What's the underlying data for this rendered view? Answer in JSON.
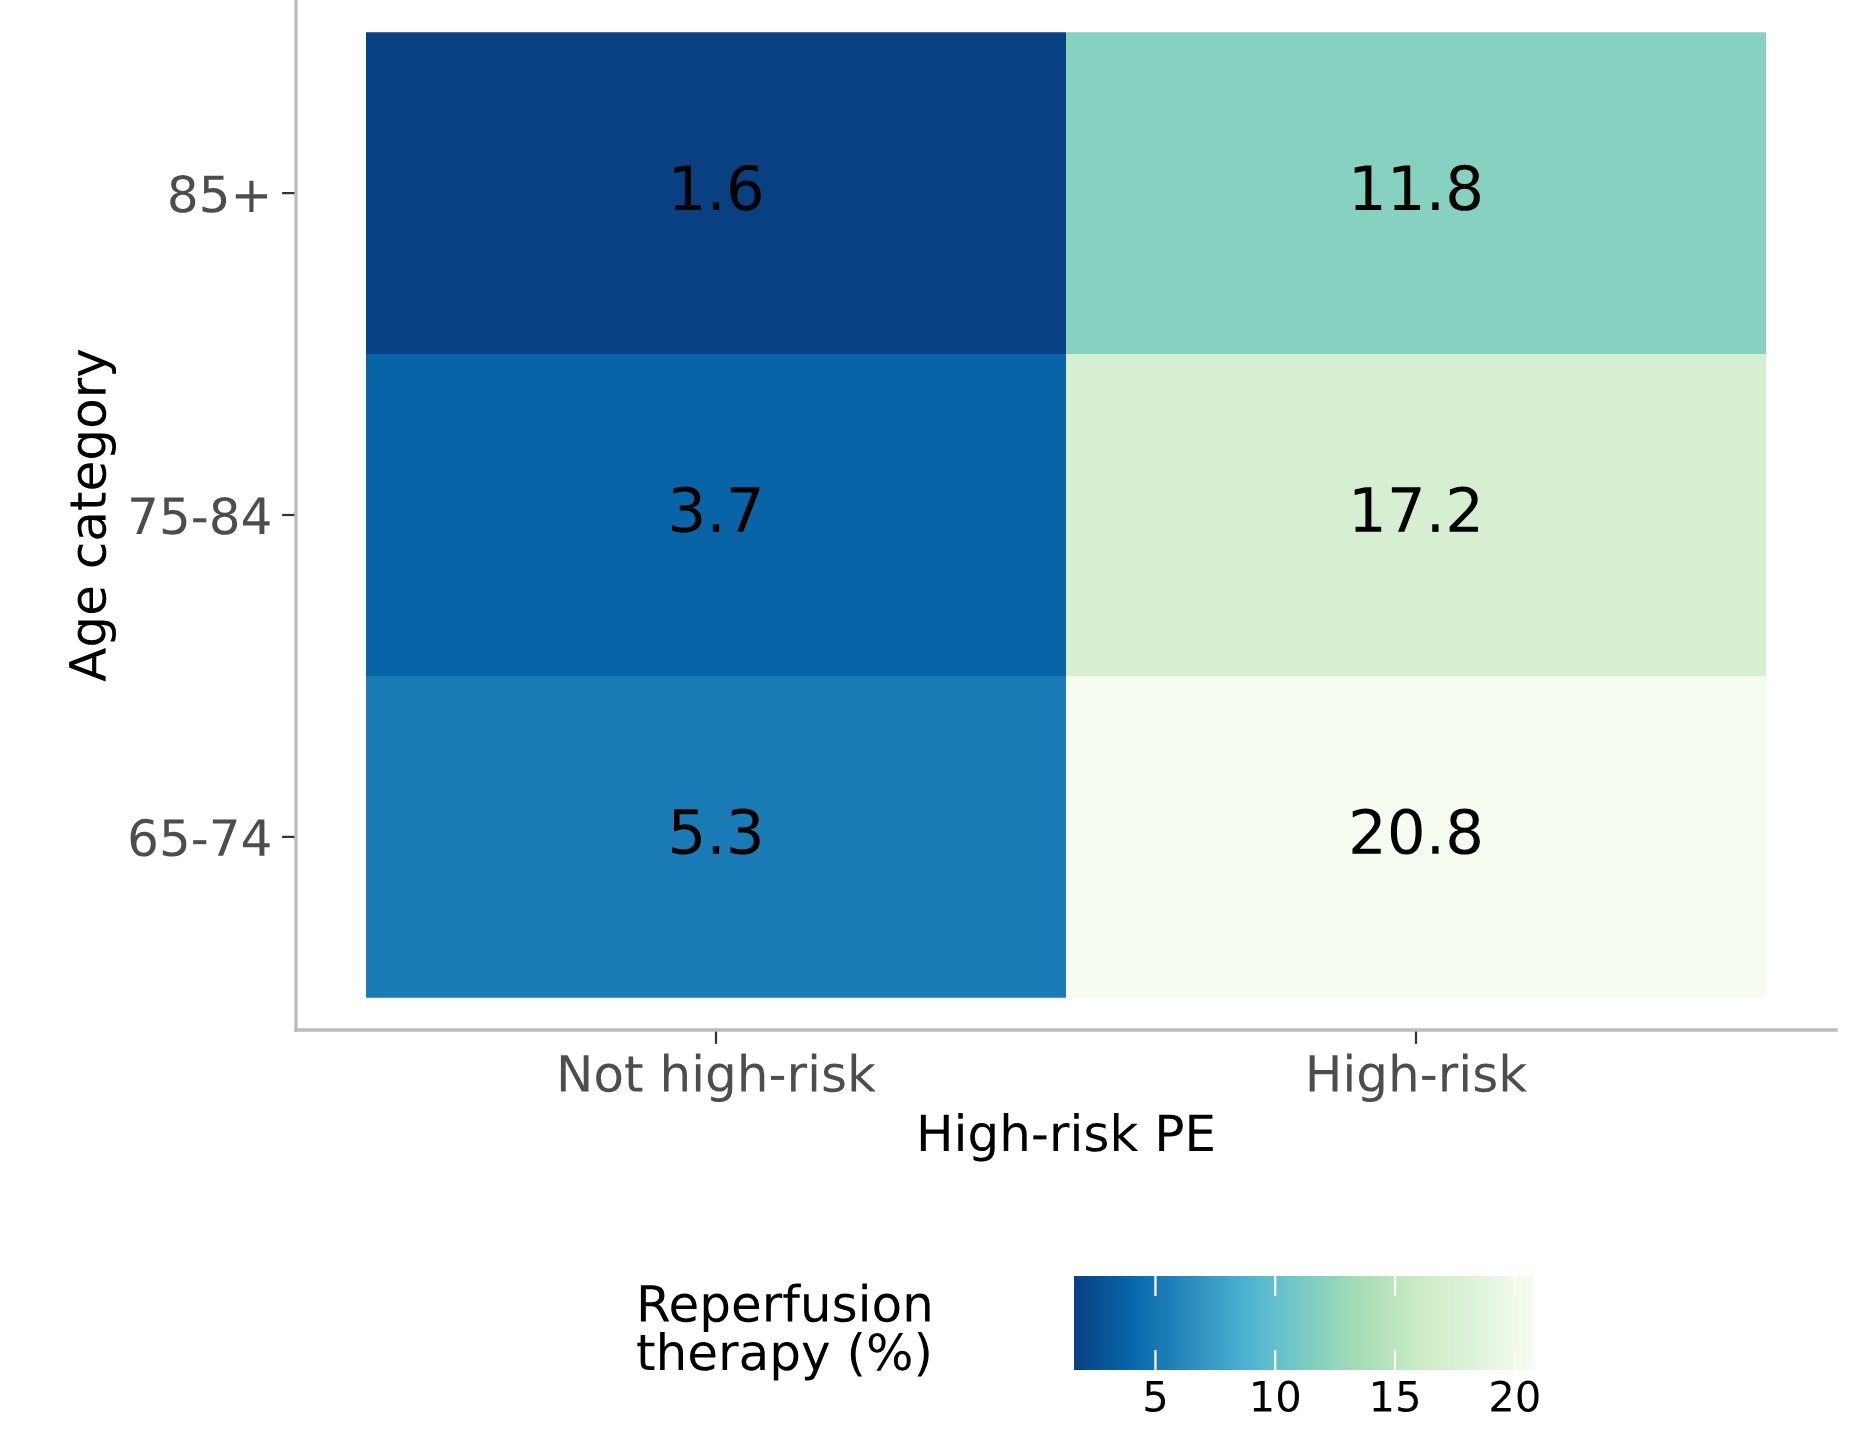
{
  "chart_data": {
    "type": "heatmap",
    "xlabel": "High-risk PE",
    "ylabel": "Age category",
    "clabel": "Reperfusion\ntherapy (%)",
    "categories": [
      "Not high-risk",
      "High-risk"
    ],
    "y_categories": [
      "85+",
      "75-84",
      "65-74"
    ],
    "cells": [
      [
        1.6,
        11.8
      ],
      [
        3.7,
        17.2
      ],
      [
        5.3,
        20.8
      ]
    ],
    "data_labels": true,
    "clim": [
      1.6,
      20.8
    ],
    "cticks": [
      5,
      10,
      15,
      20
    ]
  }
}
